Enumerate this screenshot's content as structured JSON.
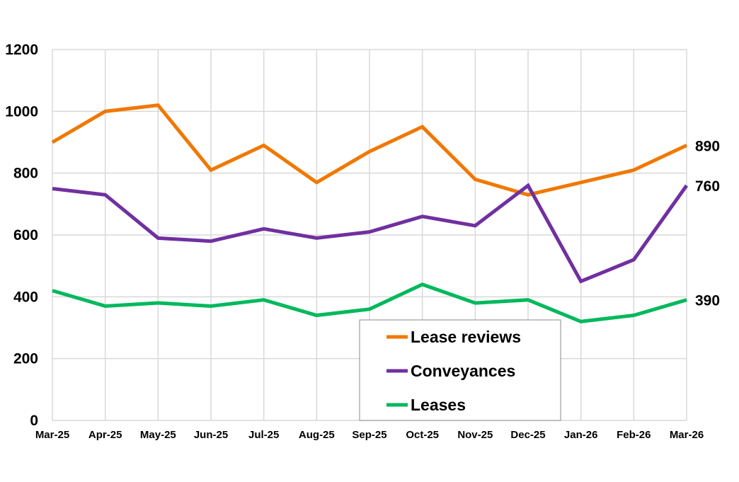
{
  "chart_data": {
    "type": "line",
    "categories": [
      "Mar-25",
      "Apr-25",
      "May-25",
      "Jun-25",
      "Jul-25",
      "Aug-25",
      "Sep-25",
      "Oct-25",
      "Nov-25",
      "Dec-25",
      "Jan-26",
      "Feb-26",
      "Mar-26"
    ],
    "series": [
      {
        "name": "Lease reviews",
        "color": "#F07800",
        "values": [
          900,
          1000,
          1020,
          810,
          890,
          770,
          870,
          950,
          780,
          730,
          770,
          810,
          890
        ],
        "end_label": "890"
      },
      {
        "name": "Conveyances",
        "color": "#7030A0",
        "values": [
          750,
          730,
          590,
          580,
          620,
          590,
          610,
          660,
          630,
          760,
          450,
          520,
          760
        ],
        "end_label": "760"
      },
      {
        "name": "Leases",
        "color": "#00B85C",
        "values": [
          420,
          370,
          380,
          370,
          390,
          340,
          360,
          440,
          380,
          390,
          320,
          340,
          390
        ],
        "end_label": "390"
      }
    ],
    "yticks": [
      "0",
      "200",
      "400",
      "600",
      "800",
      "1000",
      "1200"
    ],
    "ylim": [
      0,
      1200
    ],
    "grid": true,
    "legend_position": "bottom-center-right",
    "title": "",
    "xlabel": "",
    "ylabel": ""
  }
}
